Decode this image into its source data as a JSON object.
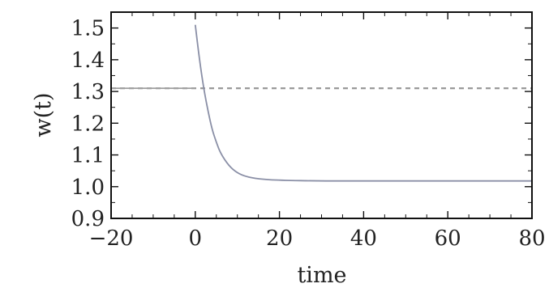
{
  "chart_data": {
    "type": "line",
    "title": "",
    "xlabel": "time",
    "ylabel": "w(t)",
    "xlim": [
      -20,
      80
    ],
    "ylim": [
      0.9,
      1.55
    ],
    "x_ticks": [
      -20,
      0,
      20,
      40,
      60,
      80
    ],
    "x_tick_labels": [
      "−20",
      "0",
      "20",
      "40",
      "60",
      "80"
    ],
    "y_ticks": [
      0.9,
      1.0,
      1.1,
      1.2,
      1.3,
      1.4,
      1.5
    ],
    "y_tick_labels": [
      "0.9",
      "1.0",
      "1.1",
      "1.2",
      "1.3",
      "1.4",
      "1.5"
    ],
    "grid": false,
    "series": [
      {
        "style": "dashed",
        "color": "#9a9a9a",
        "x": [
          -20,
          80
        ],
        "y": [
          1.31,
          1.31
        ]
      },
      {
        "style": "solid",
        "color": "#8a8fa6",
        "x": [
          0,
          1,
          2,
          3,
          4,
          5,
          6,
          8,
          10,
          12,
          15,
          20,
          30,
          40,
          60,
          80
        ],
        "y": [
          1.51,
          1.4,
          1.31,
          1.24,
          1.18,
          1.14,
          1.105,
          1.065,
          1.043,
          1.032,
          1.024,
          1.02,
          1.018,
          1.018,
          1.018,
          1.018
        ]
      },
      {
        "style": "solid",
        "color": "#a0a0a0",
        "x": [
          -20,
          0
        ],
        "y": [
          1.31,
          1.31
        ]
      }
    ]
  }
}
